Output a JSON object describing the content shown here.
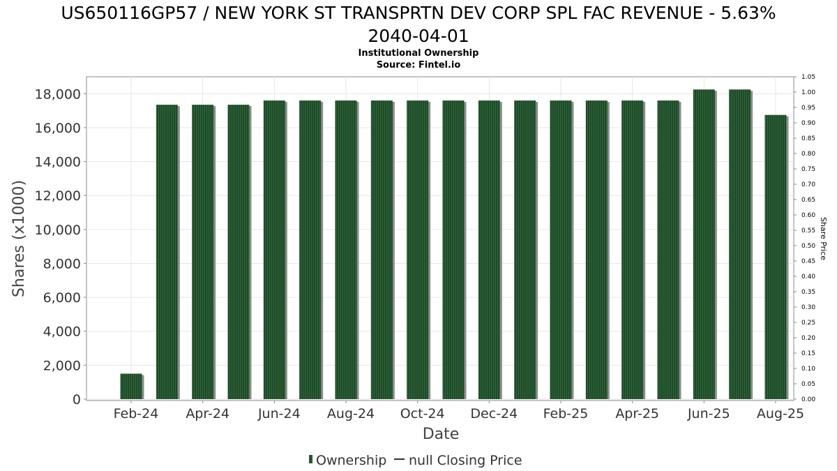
{
  "chart_data": {
    "type": "bar",
    "title_line1": "US650116GP57 / NEW YORK ST TRANSPRTN DEV CORP SPL FAC REVENUE - 5.63%",
    "title_line2": "2040-04-01",
    "subtitle": "Institutional Ownership",
    "source": "Source: Fintel.io",
    "xlabel": "Date",
    "ylabel": "Shares (x1000)",
    "y2label": "Share Price",
    "x_tick_labels": [
      "Feb-24",
      "Apr-24",
      "Jun-24",
      "Aug-24",
      "Oct-24",
      "Dec-24",
      "Feb-25",
      "Apr-25",
      "Jun-25",
      "Aug-25"
    ],
    "categories": [
      "2024-02",
      "2024-03",
      "2024-04",
      "2024-05",
      "2024-06",
      "2024-07",
      "2024-08",
      "2024-09",
      "2024-10",
      "2024-11",
      "2024-12",
      "2025-01",
      "2025-02",
      "2025-03",
      "2025-04",
      "2025-05",
      "2025-06",
      "2025-07",
      "2025-08"
    ],
    "series": [
      {
        "name": "Ownership",
        "values": [
          1500,
          17350,
          17350,
          17350,
          17600,
          17600,
          17600,
          17600,
          17600,
          17600,
          17600,
          17600,
          17600,
          17600,
          17600,
          17600,
          18250,
          18250,
          16750
        ]
      }
    ],
    "ylim": [
      0,
      19000
    ],
    "yticks": [
      "0",
      "2,000",
      "4,000",
      "6,000",
      "8,000",
      "10,000",
      "12,000",
      "14,000",
      "16,000",
      "18,000"
    ],
    "y2lim": [
      0,
      1.05
    ],
    "y2ticks": [
      "0.00",
      "0.05",
      "0.10",
      "0.15",
      "0.20",
      "0.25",
      "0.30",
      "0.35",
      "0.40",
      "0.45",
      "0.50",
      "0.55",
      "0.60",
      "0.65",
      "0.70",
      "0.75",
      "0.80",
      "0.85",
      "0.90",
      "0.95",
      "1.00",
      "1.05"
    ],
    "legend": {
      "position": "bottom-center",
      "items": [
        "Ownership",
        "null Closing Price"
      ]
    },
    "grid": true,
    "colors": {
      "bar": "#1e4a28",
      "bar_stripe": "#2f6a3a",
      "bar_shadow": "#8c8c8c",
      "grid": "#e6e6e6",
      "axis": "#888888"
    }
  }
}
